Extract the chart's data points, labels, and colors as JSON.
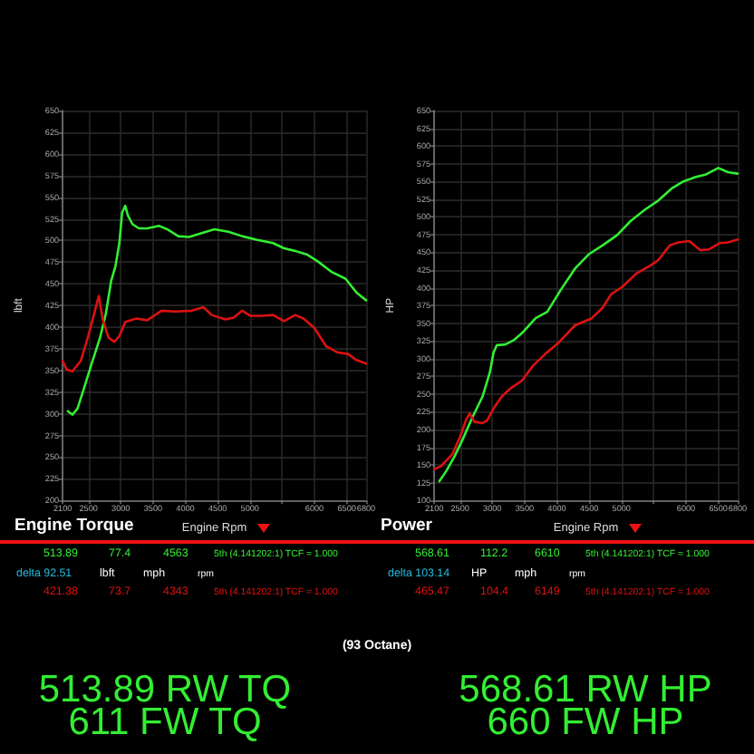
{
  "chart_data": [
    {
      "type": "line",
      "title": "Engine Torque",
      "xlabel": "Engine Rpm",
      "ylabel": "lbft",
      "xlim": [
        2100,
        6800
      ],
      "xticks": [
        2100,
        2500,
        3000,
        3500,
        4000,
        4500,
        5000,
        {
          "value": 5500,
          "label": null
        },
        6000,
        6500,
        6800
      ],
      "ylim": [
        200,
        650
      ],
      "yticks": [
        200,
        225,
        250,
        275,
        300,
        325,
        350,
        375,
        400,
        425,
        450,
        475,
        500,
        525,
        550,
        575,
        600,
        625,
        650
      ],
      "grid": true,
      "series": [
        {
          "color": "#33ee33",
          "x": [
            2180,
            2250,
            2330,
            2420,
            2550,
            2680,
            2770,
            2850,
            2920,
            2980,
            3020,
            3070,
            3110,
            3180,
            3280,
            3410,
            3590,
            3720,
            3890,
            4060,
            4230,
            4450,
            4670,
            4880,
            5100,
            5360,
            5530,
            5700,
            5880,
            6050,
            6260,
            6480,
            6650,
            6800
          ],
          "values": [
            303,
            299,
            306,
            327,
            358,
            388,
            416,
            453,
            471,
            498,
            532,
            540,
            529,
            519,
            514,
            514,
            517,
            513,
            505,
            504,
            508,
            513,
            510,
            505,
            501,
            497,
            491,
            488,
            484,
            476,
            464,
            456,
            440,
            431
          ]
        },
        {
          "color": "#dd1111",
          "x": [
            2100,
            2160,
            2250,
            2380,
            2490,
            2590,
            2660,
            2720,
            2810,
            2900,
            2980,
            3070,
            3240,
            3410,
            3630,
            3850,
            4100,
            4280,
            4410,
            4620,
            4750,
            4880,
            5010,
            5180,
            5360,
            5530,
            5700,
            5830,
            6000,
            6180,
            6350,
            6520,
            6650,
            6800
          ],
          "values": [
            361,
            351,
            349,
            361,
            388,
            416,
            436,
            409,
            388,
            383,
            390,
            406,
            410,
            408,
            419,
            418,
            419,
            423,
            414,
            409,
            411,
            419,
            413,
            413,
            414,
            407,
            414,
            410,
            399,
            378,
            371,
            369,
            362,
            358
          ]
        }
      ],
      "annotations": [
        "513.89",
        "77.4",
        "4563",
        "5th (4.141202:1) TCF = 1.000",
        "delta 92.51",
        "lbft",
        "mph",
        "rpm",
        "421.38",
        "73.7",
        "4343",
        "5th (4.141202:1) TCF = 1.000",
        "513.89 RW TQ",
        "611 FW TQ",
        "(93 Octane)"
      ]
    },
    {
      "type": "line",
      "title": "Power",
      "xlabel": "Engine Rpm",
      "ylabel": "HP",
      "xlim": [
        2100,
        6800
      ],
      "xticks": [
        2100,
        2500,
        3000,
        3500,
        4000,
        4500,
        5000,
        {
          "value": 5500,
          "label": null
        },
        6000,
        6500,
        6800
      ],
      "ylim": [
        100,
        650
      ],
      "yticks": [
        100,
        125,
        150,
        175,
        200,
        225,
        250,
        275,
        300,
        325,
        350,
        375,
        400,
        425,
        450,
        475,
        500,
        525,
        550,
        575,
        600,
        625,
        650
      ],
      "grid": true,
      "series": [
        {
          "color": "#33ee33",
          "x": [
            2180,
            2290,
            2420,
            2550,
            2680,
            2850,
            2960,
            3020,
            3070,
            3200,
            3330,
            3460,
            3670,
            3850,
            4060,
            4280,
            4490,
            4710,
            4930,
            5140,
            5360,
            5570,
            5790,
            5960,
            6140,
            6310,
            6500,
            6650,
            6800
          ],
          "values": [
            127,
            142,
            163,
            188,
            215,
            247,
            280,
            309,
            319,
            320,
            326,
            336,
            357,
            366,
            397,
            427,
            447,
            460,
            474,
            494,
            510,
            523,
            541,
            550,
            556,
            560,
            569,
            563,
            561
          ]
        },
        {
          "color": "#dd1111",
          "x": [
            2100,
            2200,
            2380,
            2510,
            2590,
            2650,
            2720,
            2850,
            2920,
            3020,
            3150,
            3280,
            3460,
            3630,
            3800,
            4020,
            4280,
            4540,
            4710,
            4840,
            5010,
            5230,
            5440,
            5570,
            5750,
            5880,
            6050,
            6220,
            6350,
            6520,
            6650,
            6800
          ],
          "values": [
            144,
            148,
            165,
            192,
            213,
            223,
            211,
            209,
            213,
            230,
            247,
            258,
            269,
            290,
            305,
            322,
            347,
            357,
            372,
            391,
            401,
            420,
            431,
            439,
            460,
            464,
            466,
            453,
            454,
            463,
            464,
            468
          ]
        }
      ],
      "annotations": [
        "568.61",
        "112.2",
        "6610",
        "5th (4.141202:1) TCF = 1.000",
        "delta 103.14",
        "HP",
        "mph",
        "rpm",
        "465.47",
        "104.4",
        "6149",
        "5th (4.141202:1) TCF = 1.000",
        "568.61 RW HP",
        "660 FW HP"
      ]
    }
  ]
}
